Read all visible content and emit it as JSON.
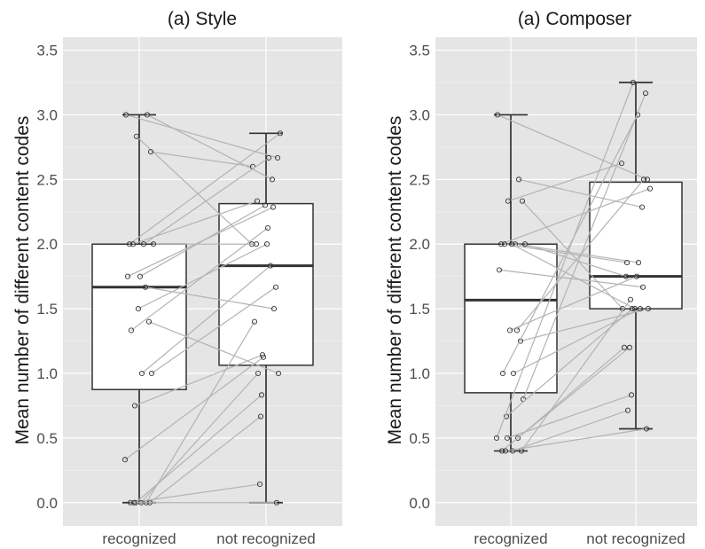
{
  "chart_data": [
    {
      "type": "boxplot",
      "title": "(a) Style",
      "ylabel": "Mean number of different content codes",
      "xlabel": "",
      "categories": [
        "recognized",
        "not recognized"
      ],
      "ylim": [
        -0.18,
        3.6
      ],
      "yticks": [
        0.0,
        0.5,
        1.0,
        1.5,
        2.0,
        2.5,
        3.0,
        3.5
      ],
      "ytick_labels": [
        "0.0",
        "0.5",
        "1.0",
        "1.5",
        "2.0",
        "2.5",
        "3.0",
        "3.5"
      ],
      "grid": true,
      "boxes": [
        {
          "category": "recognized",
          "whisker_low": 0.0,
          "q1": 0.875,
          "median": 1.667,
          "q3": 2.0,
          "whisker_high": 3.0
        },
        {
          "category": "not recognized",
          "whisker_low": 0.0,
          "q1": 1.063,
          "median": 1.833,
          "q3": 2.313,
          "whisker_high": 2.857
        }
      ],
      "pairs": [
        [
          3.0,
          2.667
        ],
        [
          3.0,
          2.5
        ],
        [
          2.833,
          2.0
        ],
        [
          2.714,
          2.6
        ],
        [
          2.0,
          2.857
        ],
        [
          2.0,
          2.667
        ],
        [
          2.0,
          2.333
        ],
        [
          2.0,
          2.0
        ],
        [
          1.75,
          2.3
        ],
        [
          1.75,
          2.286
        ],
        [
          1.667,
          1.5
        ],
        [
          1.5,
          2.0
        ],
        [
          1.4,
          1.0
        ],
        [
          1.333,
          2.125
        ],
        [
          1.0,
          1.833
        ],
        [
          1.0,
          1.667
        ],
        [
          0.75,
          1.143
        ],
        [
          0.333,
          1.125
        ],
        [
          0.0,
          1.4
        ],
        [
          0.0,
          0.833
        ],
        [
          0.0,
          0.667
        ],
        [
          0.0,
          0.143
        ],
        [
          0.0,
          1.0
        ],
        [
          0.0,
          0.0
        ]
      ]
    },
    {
      "type": "boxplot",
      "title": "(a) Composer",
      "ylabel": "Mean number of different content codes",
      "xlabel": "",
      "categories": [
        "recognized",
        "not recognized"
      ],
      "ylim": [
        -0.18,
        3.6
      ],
      "yticks": [
        0.0,
        0.5,
        1.0,
        1.5,
        2.0,
        2.5,
        3.0,
        3.5
      ],
      "ytick_labels": [
        "0.0",
        "0.5",
        "1.0",
        "1.5",
        "2.0",
        "2.5",
        "3.0",
        "3.5"
      ],
      "grid": true,
      "boxes": [
        {
          "category": "recognized",
          "whisker_low": 0.4,
          "q1": 0.85,
          "median": 1.567,
          "q3": 2.0,
          "whisker_high": 3.0
        },
        {
          "category": "not recognized",
          "whisker_low": 0.571,
          "q1": 1.5,
          "median": 1.75,
          "q3": 2.479,
          "whisker_high": 3.25
        }
      ],
      "pairs": [
        [
          3.0,
          2.5
        ],
        [
          2.5,
          2.286
        ],
        [
          2.333,
          2.625
        ],
        [
          2.333,
          1.5
        ],
        [
          2.0,
          2.429
        ],
        [
          2.0,
          1.857
        ],
        [
          2.0,
          1.857
        ],
        [
          2.0,
          1.75
        ],
        [
          2.0,
          1.5
        ],
        [
          1.8,
          1.667
        ],
        [
          1.333,
          2.5
        ],
        [
          1.333,
          1.75
        ],
        [
          1.25,
          1.5
        ],
        [
          1.0,
          3.0
        ],
        [
          1.0,
          1.5
        ],
        [
          0.8,
          3.167
        ],
        [
          0.667,
          1.5
        ],
        [
          0.5,
          3.25
        ],
        [
          0.5,
          1.2
        ],
        [
          0.5,
          0.833
        ],
        [
          0.4,
          1.571
        ],
        [
          0.4,
          1.2
        ],
        [
          0.4,
          0.714
        ],
        [
          0.4,
          0.571
        ]
      ]
    }
  ]
}
